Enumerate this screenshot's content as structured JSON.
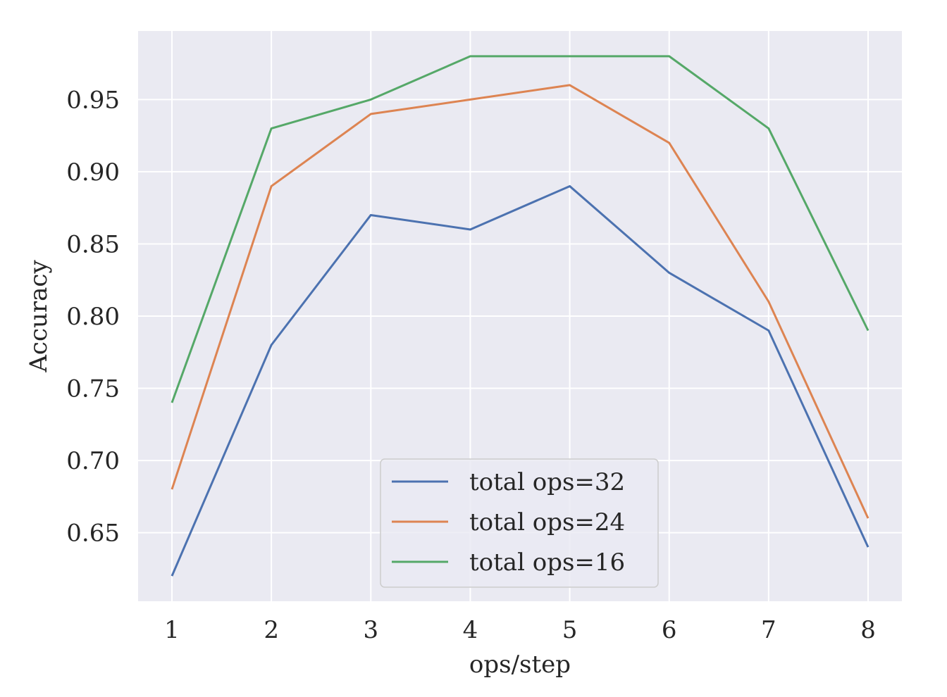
{
  "chart_data": {
    "type": "line",
    "title": "",
    "xlabel": "ops/step",
    "ylabel": "Accuracy",
    "x": [
      1,
      2,
      3,
      4,
      5,
      6,
      7,
      8
    ],
    "xlim": [
      0.66,
      8.34
    ],
    "ylim": [
      0.6025,
      0.9975
    ],
    "yticks": [
      0.65,
      0.7,
      0.75,
      0.8,
      0.85,
      0.9,
      0.95
    ],
    "ytick_labels": [
      "0.65",
      "0.70",
      "0.75",
      "0.80",
      "0.85",
      "0.90",
      "0.95"
    ],
    "xticks": [
      1,
      2,
      3,
      4,
      5,
      6,
      7,
      8
    ],
    "xtick_labels": [
      "1",
      "2",
      "3",
      "4",
      "5",
      "6",
      "7",
      "8"
    ],
    "grid": true,
    "legend_position": "bottom-center",
    "series": [
      {
        "name": "total ops=32",
        "color": "#4c72b0",
        "values": [
          0.62,
          0.78,
          0.87,
          0.86,
          0.89,
          0.83,
          0.79,
          0.64
        ]
      },
      {
        "name": "total ops=24",
        "color": "#dd8452",
        "values": [
          0.68,
          0.89,
          0.94,
          0.95,
          0.96,
          0.92,
          0.81,
          0.66
        ]
      },
      {
        "name": "total ops=16",
        "color": "#55a868",
        "values": [
          0.74,
          0.93,
          0.95,
          0.98,
          0.98,
          0.98,
          0.93,
          0.79
        ]
      }
    ]
  }
}
